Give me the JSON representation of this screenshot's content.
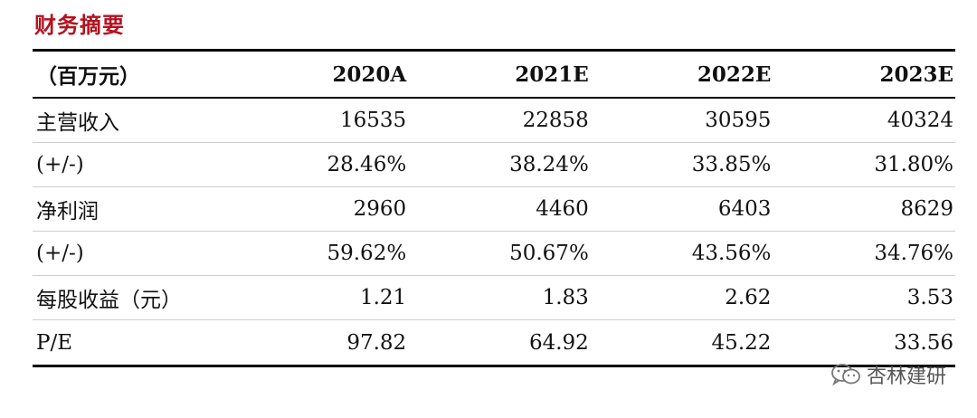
{
  "title": "财务摘要",
  "table": {
    "header": {
      "label": "（百万元）",
      "cols": [
        "2020A",
        "2021E",
        "2022E",
        "2023E"
      ]
    },
    "rows": [
      {
        "label": "主营收入",
        "values": [
          "16535",
          "22858",
          "30595",
          "40324"
        ]
      },
      {
        "label": "(+/-)",
        "values": [
          "28.46%",
          "38.24%",
          "33.85%",
          "31.80%"
        ]
      },
      {
        "label": "净利润",
        "values": [
          "2960",
          "4460",
          "6403",
          "8629"
        ]
      },
      {
        "label": "(+/-)",
        "values": [
          "59.62%",
          "50.67%",
          "43.56%",
          "34.76%"
        ]
      },
      {
        "label": "每股收益（元）",
        "values": [
          "1.21",
          "1.83",
          "2.62",
          "3.53"
        ]
      },
      {
        "label": "P/E",
        "values": [
          "97.82",
          "64.92",
          "45.22",
          "33.56"
        ]
      }
    ]
  },
  "watermark": {
    "text": "杏林建研",
    "icon": "wechat-icon"
  }
}
